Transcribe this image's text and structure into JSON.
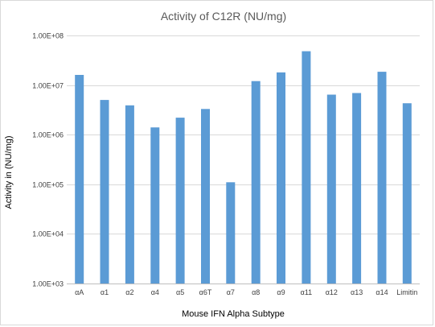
{
  "chart_data": {
    "type": "bar",
    "title": "Activity of C12R (NU/mg)",
    "xlabel": "Mouse IFN Alpha Subtype",
    "ylabel": "Activity in (NU/mg)",
    "yscale": "log",
    "ylim": [
      1000,
      100000000
    ],
    "yticks": [
      1000,
      10000,
      100000,
      1000000,
      10000000,
      100000000
    ],
    "ytick_labels": [
      "1.00E+03",
      "1.00E+04",
      "1.00E+05",
      "1.00E+06",
      "1.00E+07",
      "1.00E+08"
    ],
    "grid": true,
    "legend": "none",
    "bar_color": "#5b9bd5",
    "categories": [
      "αA",
      "α1",
      "α2",
      "α4",
      "α5",
      "α6T",
      "α7",
      "α8",
      "α9",
      "α11",
      "α12",
      "α13",
      "α14",
      "Limitin"
    ],
    "values": [
      16000000,
      5000000,
      3900000,
      1400000,
      2200000,
      3300000,
      110000,
      12000000,
      18000000,
      48000000,
      6400000,
      6900000,
      18500000,
      4300000
    ]
  }
}
